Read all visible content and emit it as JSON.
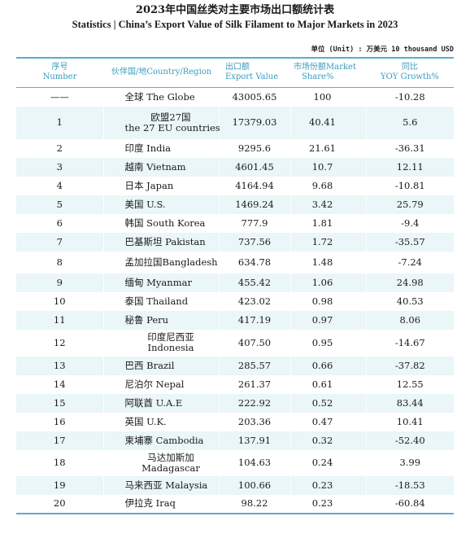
{
  "title_cn": "2023年中国丝类对主要市场出口额统计表",
  "title_en": "Statistics | China’s Export Value of Silk Filament to Major Markets in 2023",
  "unit": "单位 (Unit) : 万美元 10 thousand USD",
  "headers": [
    {
      "cn": "序号",
      "en": "Number"
    },
    {
      "cn": "伙伴国/地Country/Region",
      "en": ""
    },
    {
      "cn": "出口额",
      "en": "Export Value"
    },
    {
      "cn": "市场份额Market",
      "en": "Share%"
    },
    {
      "cn": "同比",
      "en": "YOY Growth%"
    }
  ],
  "rows": [
    {
      "no": "——",
      "country": "全球  The Globe",
      "country2": "",
      "value": "43005.65",
      "share": "100",
      "yoy": "-10.28"
    },
    {
      "no": "1",
      "country": "欧盟27国",
      "country2": "the 27 EU countries",
      "value": "17379.03",
      "share": "40.41",
      "yoy": "5.6"
    },
    {
      "no": "2",
      "country": "印度  India",
      "country2": "",
      "value": "9295.6",
      "share": "21.61",
      "yoy": "-36.31"
    },
    {
      "no": "3",
      "country": "越南  Vietnam",
      "country2": "",
      "value": "4601.45",
      "share": "10.7",
      "yoy": "12.11"
    },
    {
      "no": "4",
      "country": "日本  Japan",
      "country2": "",
      "value": "4164.94",
      "share": "9.68",
      "yoy": "-10.81"
    },
    {
      "no": "5",
      "country": "美国  U.S.",
      "country2": "",
      "value": "1469.24",
      "share": "3.42",
      "yoy": "25.79"
    },
    {
      "no": "6",
      "country": "韩国  South Korea",
      "country2": "",
      "value": "777.9",
      "share": "1.81",
      "yoy": "-9.4"
    },
    {
      "no": "7",
      "country": "巴基斯坦  Pakistan",
      "country2": "",
      "value": "737.56",
      "share": "1.72",
      "yoy": "-35.57"
    },
    {
      "no": "8",
      "country": "孟加拉国Bangladesh",
      "country2": "",
      "value": "634.78",
      "share": "1.48",
      "yoy": "-7.24"
    },
    {
      "no": "9",
      "country": "缅甸  Myanmar",
      "country2": "",
      "value": "455.42",
      "share": "1.06",
      "yoy": "24.98"
    },
    {
      "no": "10",
      "country": "泰国  Thailand",
      "country2": "",
      "value": "423.02",
      "share": "0.98",
      "yoy": "40.53"
    },
    {
      "no": "11",
      "country": "秘鲁  Peru",
      "country2": "",
      "value": "417.19",
      "share": "0.97",
      "yoy": "8.06"
    },
    {
      "no": "12",
      "country": "印度尼西亚",
      "country2": "Indonesia",
      "value": "407.50",
      "share": "0.95",
      "yoy": "-14.67"
    },
    {
      "no": "13",
      "country": "巴西  Brazil",
      "country2": "",
      "value": "285.57",
      "share": "0.66",
      "yoy": "-37.82"
    },
    {
      "no": "14",
      "country": "尼泊尔  Nepal",
      "country2": "",
      "value": "261.37",
      "share": "0.61",
      "yoy": "12.55"
    },
    {
      "no": "15",
      "country": "阿联酋  U.A.E",
      "country2": "",
      "value": "222.92",
      "share": "0.52",
      "yoy": "83.44"
    },
    {
      "no": "16",
      "country": "英国  U.K.",
      "country2": "",
      "value": "203.36",
      "share": "0.47",
      "yoy": "10.41"
    },
    {
      "no": "17",
      "country": "柬埔寨  Cambodia",
      "country2": "",
      "value": "137.91",
      "share": "0.32",
      "yoy": "-52.40"
    },
    {
      "no": "18",
      "country": "马达加斯加",
      "country2": "Madagascar",
      "value": "104.63",
      "share": "0.24",
      "yoy": "3.99"
    },
    {
      "no": "19",
      "country": "马来西亚  Malaysia",
      "country2": "",
      "value": "100.66",
      "share": "0.23",
      "yoy": "-18.53"
    },
    {
      "no": "20",
      "country": "伊拉克  Iraq",
      "country2": "",
      "value": "98.22",
      "share": "0.23",
      "yoy": "-60.84"
    }
  ]
}
